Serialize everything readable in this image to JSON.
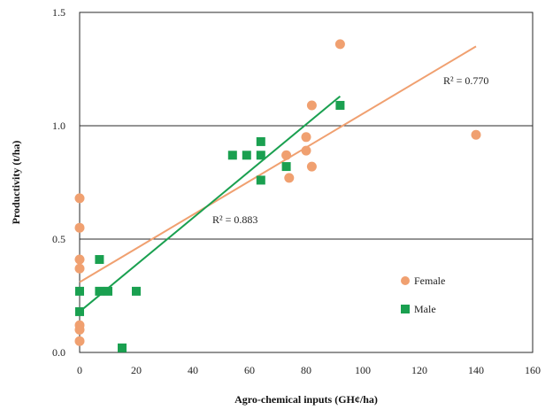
{
  "chart_data": {
    "type": "scatter",
    "title": "",
    "xlabel": "Agro-chemical inputs (GH¢/ha)",
    "ylabel": "Productivity (t/ha)",
    "xlim": [
      0,
      160
    ],
    "ylim": [
      0,
      1.5
    ],
    "x_ticks": [
      "0",
      "20",
      "40",
      "60",
      "80",
      "100",
      "120",
      "140",
      "160"
    ],
    "y_ticks": [
      "0.0",
      "0.5",
      "1.0",
      "1.5"
    ],
    "grid": "horizontal",
    "legend_position": "right",
    "series": [
      {
        "name": "Female",
        "color": "#f0a070",
        "marker": "circle",
        "points": [
          [
            0,
            0.68
          ],
          [
            0,
            0.55
          ],
          [
            0,
            0.41
          ],
          [
            0,
            0.37
          ],
          [
            0,
            0.12
          ],
          [
            0,
            0.1
          ],
          [
            0,
            0.05
          ],
          [
            73,
            0.87
          ],
          [
            74,
            0.77
          ],
          [
            80,
            0.95
          ],
          [
            80,
            0.89
          ],
          [
            82,
            0.82
          ],
          [
            82,
            1.09
          ],
          [
            92,
            1.36
          ],
          [
            140,
            0.96
          ]
        ],
        "trend": {
          "x": [
            0,
            140
          ],
          "y": [
            0.31,
            1.35
          ],
          "r2_label": "R² = 0.770"
        }
      },
      {
        "name": "Male",
        "color": "#1aa050",
        "marker": "square",
        "points": [
          [
            0,
            0.27
          ],
          [
            0,
            0.18
          ],
          [
            7,
            0.41
          ],
          [
            7,
            0.27
          ],
          [
            10,
            0.27
          ],
          [
            15,
            0.02
          ],
          [
            20,
            0.27
          ],
          [
            54,
            0.87
          ],
          [
            59,
            0.87
          ],
          [
            64,
            0.93
          ],
          [
            64,
            0.87
          ],
          [
            64,
            0.76
          ],
          [
            73,
            0.82
          ],
          [
            92,
            1.09
          ]
        ],
        "trend": {
          "x": [
            0,
            92
          ],
          "y": [
            0.18,
            1.13
          ],
          "r2_label": "R² = 0.883"
        }
      }
    ]
  }
}
